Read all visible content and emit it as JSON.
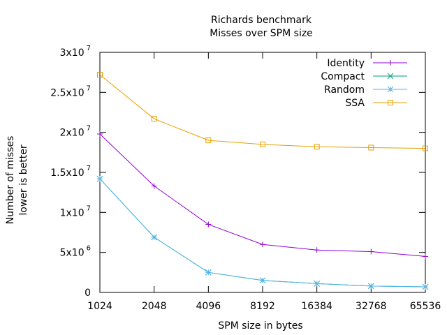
{
  "chart_data": {
    "type": "line",
    "title": "Richards benchmark",
    "subtitle": "Misses over SPM size",
    "xlabel": "SPM size in bytes",
    "ylabel": "Number of misses",
    "ylabel_sub": "lower is better",
    "x": [
      1024,
      2048,
      4096,
      8192,
      16384,
      32768,
      65536
    ],
    "x_tick_labels": [
      "1024",
      "2048",
      "4096",
      "8192",
      "16384",
      "32768",
      "65536"
    ],
    "ylim": [
      0,
      30000000
    ],
    "y_ticks": [
      {
        "value": 0,
        "mantissa": "0",
        "exp": ""
      },
      {
        "value": 5000000,
        "mantissa": "5x10",
        "exp": "6"
      },
      {
        "value": 10000000,
        "mantissa": "1x10",
        "exp": "7"
      },
      {
        "value": 15000000,
        "mantissa": "1.5x10",
        "exp": "7"
      },
      {
        "value": 20000000,
        "mantissa": "2x10",
        "exp": "7"
      },
      {
        "value": 25000000,
        "mantissa": "2.5x10",
        "exp": "7"
      },
      {
        "value": 30000000,
        "mantissa": "3x10",
        "exp": "7"
      }
    ],
    "grid": false,
    "legend_position": "top-right",
    "series": [
      {
        "name": "Identity",
        "color": "#9400d3",
        "marker": "plus",
        "values": [
          19800000,
          13300000,
          8500000,
          6000000,
          5300000,
          5100000,
          4500000
        ]
      },
      {
        "name": "Compact",
        "color": "#009e73",
        "marker": "cross",
        "values": [
          14200000,
          6900000,
          2500000,
          1500000,
          1100000,
          800000,
          700000
        ]
      },
      {
        "name": "Random",
        "color": "#56b4e9",
        "marker": "star",
        "values": [
          14200000,
          6900000,
          2500000,
          1500000,
          1100000,
          800000,
          700000
        ]
      },
      {
        "name": "SSA",
        "color": "#e69f00",
        "marker": "square",
        "values": [
          27200000,
          21700000,
          19000000,
          18500000,
          18200000,
          18100000,
          18000000
        ]
      }
    ]
  }
}
